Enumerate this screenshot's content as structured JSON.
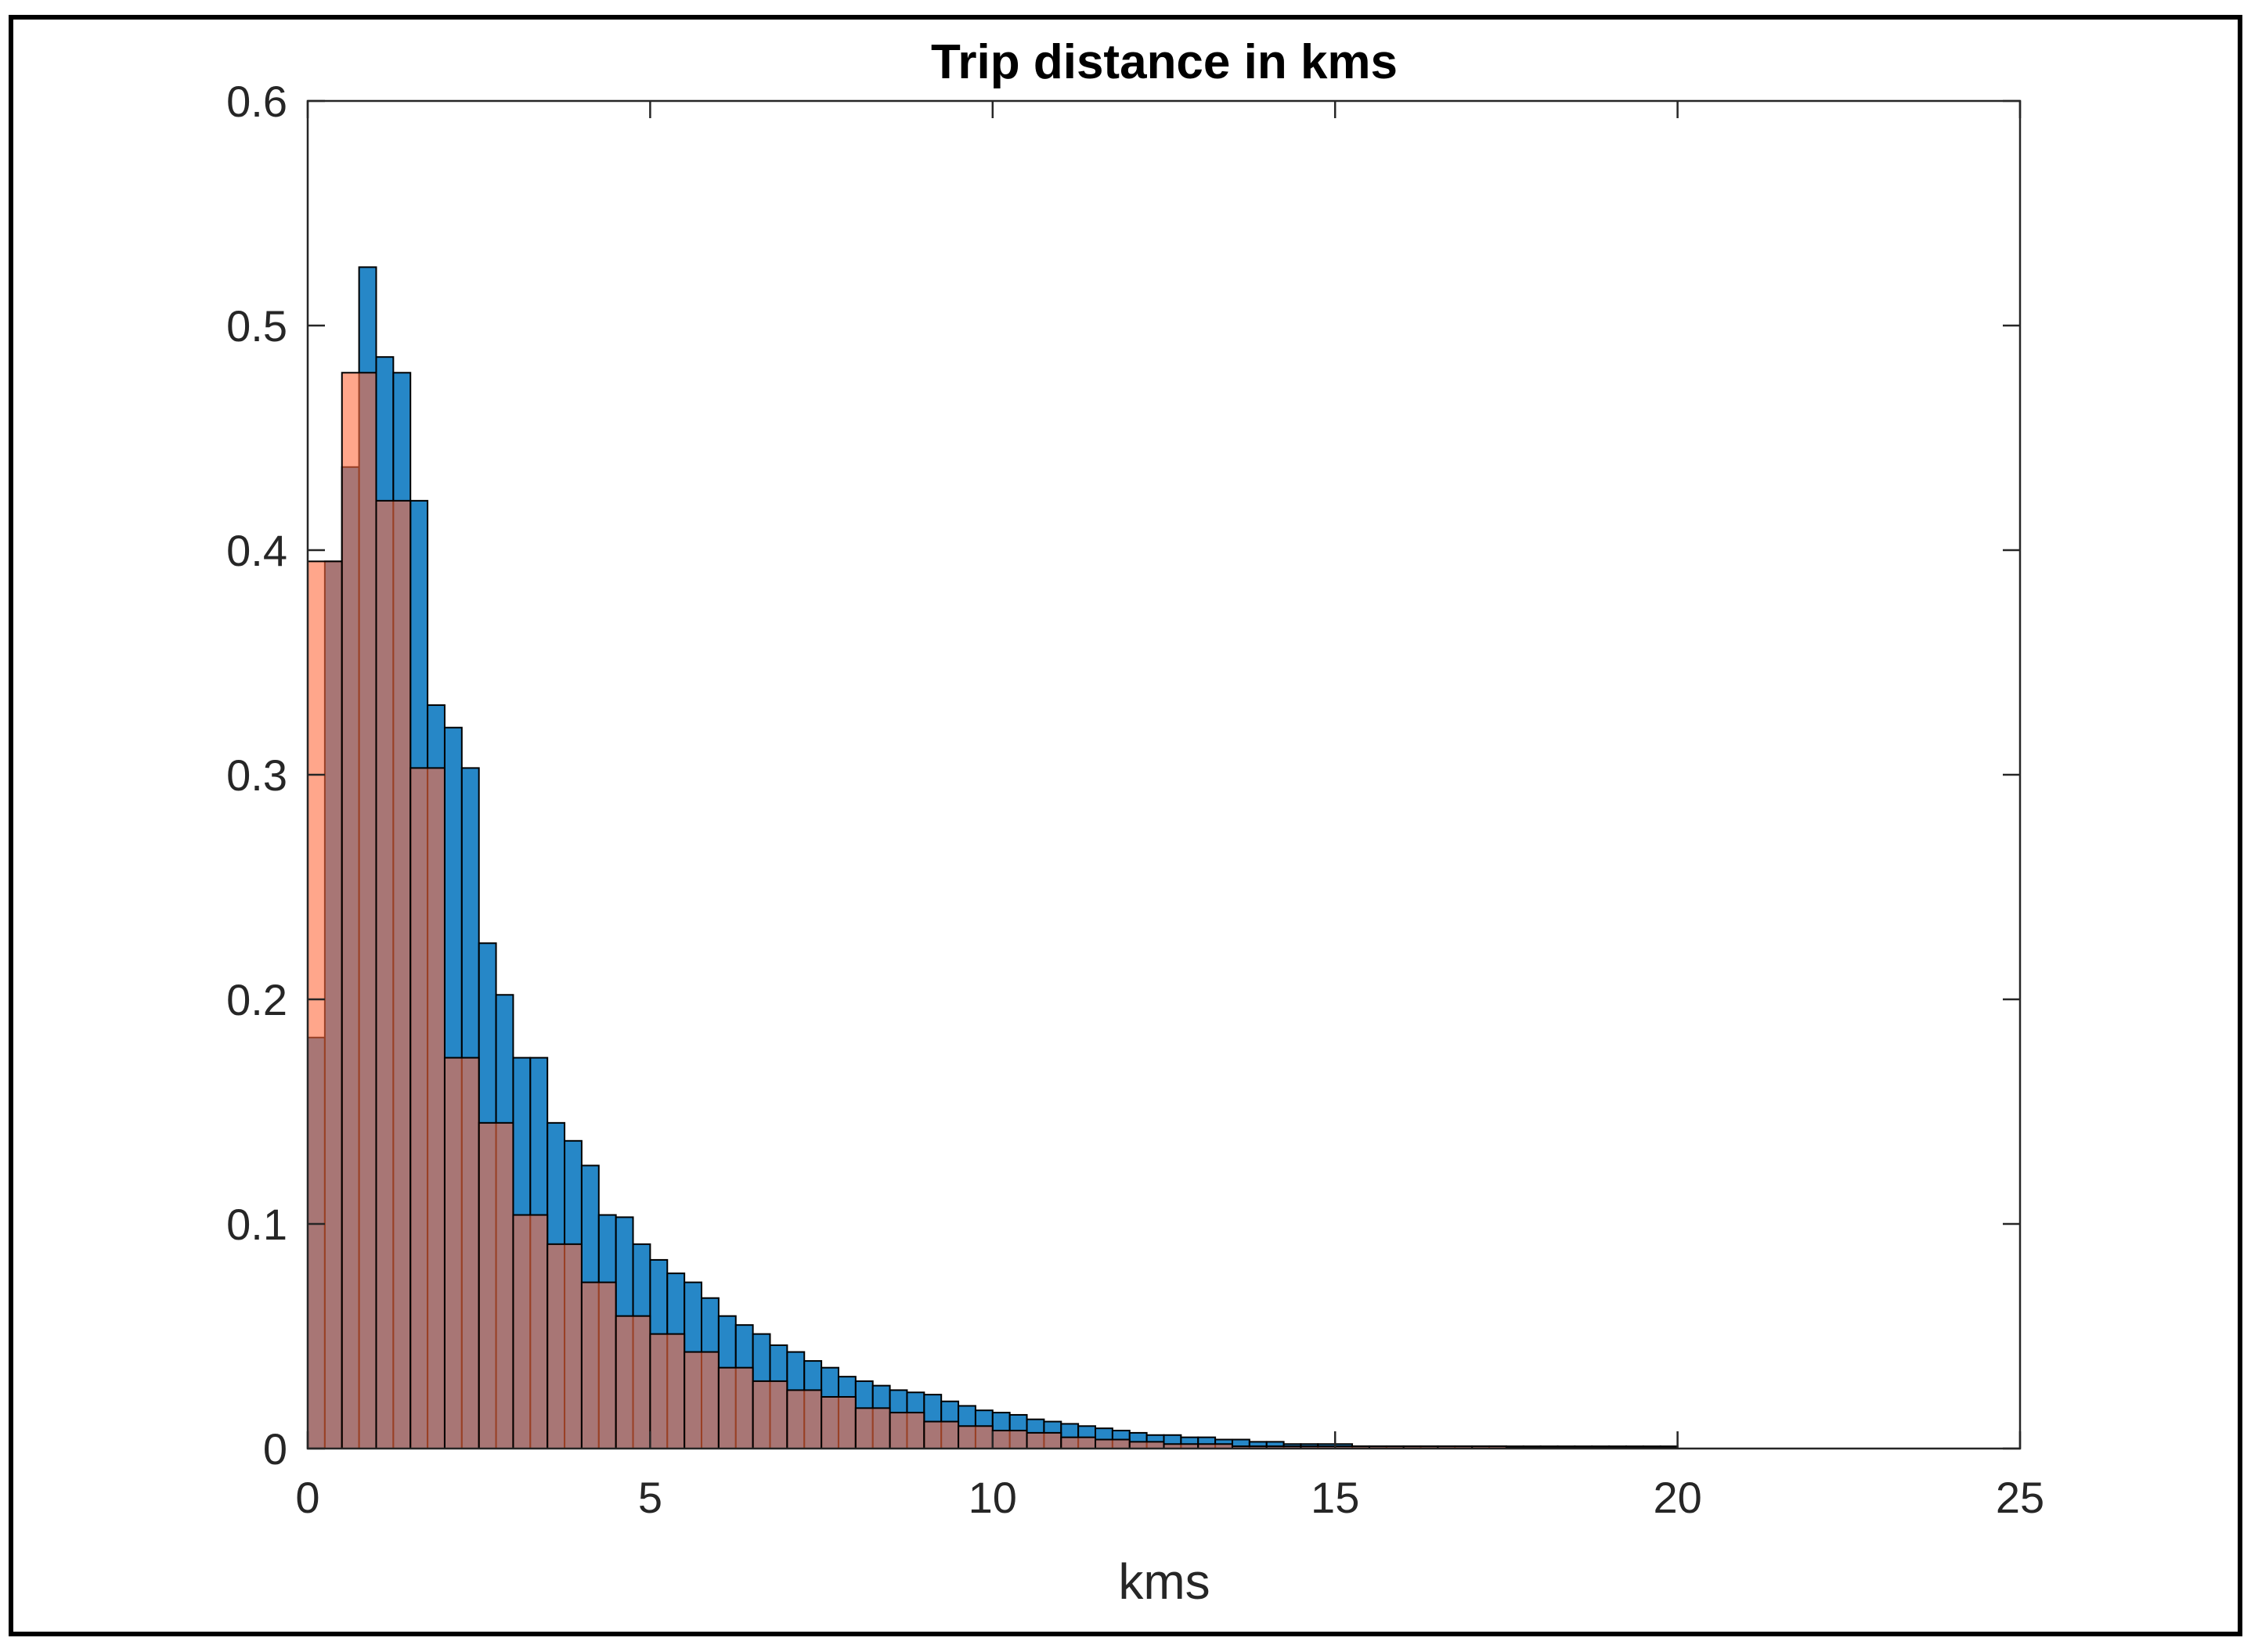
{
  "chart_data": {
    "type": "bar",
    "title": "Trip distance in kms",
    "xlabel": "kms",
    "ylabel": "",
    "xlim": [
      0,
      25
    ],
    "ylim": [
      0,
      0.6
    ],
    "x_ticks": [
      0,
      5,
      10,
      15,
      20,
      25
    ],
    "y_ticks": [
      0,
      0.1,
      0.2,
      0.3,
      0.4,
      0.5,
      0.6
    ],
    "x_tick_labels": [
      "0",
      "5",
      "10",
      "15",
      "20",
      "25"
    ],
    "y_tick_labels": [
      "0",
      "0.1",
      "0.2",
      "0.3",
      "0.4",
      "0.5",
      "0.6"
    ],
    "grid": false,
    "legend": "none",
    "series": [
      {
        "color": "#0072BD",
        "bin_width": 0.25,
        "x_start": 0,
        "values": [
          0.183,
          0.395,
          0.437,
          0.526,
          0.486,
          0.479,
          0.422,
          0.331,
          0.321,
          0.303,
          0.225,
          0.202,
          0.174,
          0.174,
          0.145,
          0.137,
          0.126,
          0.104,
          0.103,
          0.091,
          0.084,
          0.078,
          0.074,
          0.067,
          0.059,
          0.055,
          0.051,
          0.046,
          0.043,
          0.039,
          0.036,
          0.032,
          0.03,
          0.028,
          0.026,
          0.025,
          0.024,
          0.021,
          0.019,
          0.017,
          0.016,
          0.015,
          0.013,
          0.012,
          0.011,
          0.01,
          0.009,
          0.008,
          0.007,
          0.006,
          0.006,
          0.005,
          0.005,
          0.004,
          0.004,
          0.003,
          0.003,
          0.002,
          0.002,
          0.002,
          0.002,
          0.001,
          0.001,
          0.001,
          0.001,
          0.001,
          0.001,
          0.001,
          0.001,
          0.001,
          0.001,
          0.001,
          0.001,
          0.001,
          0.001,
          0.001,
          0.001,
          0.001,
          0.001,
          0.001
        ]
      },
      {
        "color": "#FF6A3D",
        "bin_width": 0.5,
        "x_start": 0,
        "values": [
          0.395,
          0.479,
          0.422,
          0.303,
          0.174,
          0.145,
          0.104,
          0.091,
          0.074,
          0.059,
          0.051,
          0.043,
          0.036,
          0.03,
          0.026,
          0.023,
          0.018,
          0.016,
          0.012,
          0.01,
          0.008,
          0.007,
          0.005,
          0.004,
          0.003,
          0.002,
          0.002,
          0.001,
          0.001,
          0.001,
          0.001,
          0.001,
          0.001,
          0.001,
          0.001,
          0.0005,
          0.0005,
          0.0005,
          0.0005,
          0.0005
        ]
      }
    ]
  }
}
